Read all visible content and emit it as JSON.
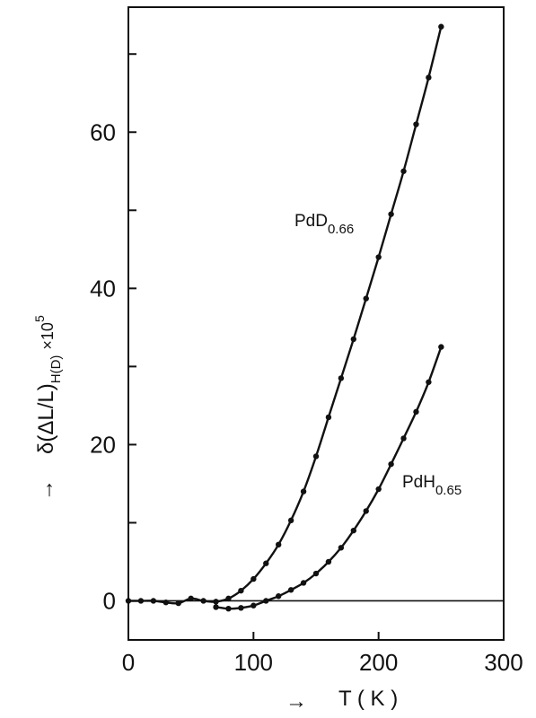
{
  "chart_data": {
    "type": "line",
    "xlabel": {
      "prefix": "→",
      "text": "T ( K )"
    },
    "ylabel": {
      "prefix": "→",
      "main": "δ(ΔL/L)",
      "sub": "H(D)",
      "mult": "×10",
      "exp": "5"
    },
    "xlim": [
      0,
      300
    ],
    "ylim": [
      -5,
      76
    ],
    "x_ticks": [
      0,
      100,
      200,
      300
    ],
    "x_tick_labels": [
      "0",
      "100",
      "200",
      "300"
    ],
    "y_ticks": [
      0,
      10,
      20,
      30,
      40,
      50,
      60,
      70
    ],
    "y_tick_labels": [
      {
        "v": 0,
        "t": "0"
      },
      {
        "v": 20,
        "t": "20"
      },
      {
        "v": 40,
        "t": "40"
      },
      {
        "v": 60,
        "t": "60"
      }
    ],
    "zero_line": true,
    "grid": false,
    "series": [
      {
        "name": "PdD",
        "name_sub": "0.66",
        "x": [
          0,
          10,
          20,
          30,
          40,
          50,
          60,
          70,
          80,
          90,
          100,
          110,
          120,
          130,
          140,
          150,
          160,
          170,
          180,
          190,
          200,
          210,
          220,
          230,
          240,
          250
        ],
        "y": [
          0,
          0,
          0,
          -0.2,
          -0.3,
          0.3,
          0,
          -0.1,
          0.3,
          1.3,
          2.8,
          4.8,
          7.2,
          10.3,
          14.0,
          18.5,
          23.5,
          28.5,
          33.5,
          38.7,
          44.0,
          49.5,
          55.0,
          61.0,
          67.0,
          73.5
        ]
      },
      {
        "name": "PdH",
        "name_sub": "0.65",
        "x": [
          70,
          80,
          90,
          100,
          110,
          120,
          130,
          140,
          150,
          160,
          170,
          180,
          190,
          200,
          210,
          220,
          230,
          240,
          250
        ],
        "y": [
          -0.8,
          -1.0,
          -0.9,
          -0.6,
          0,
          0.6,
          1.4,
          2.3,
          3.5,
          5.0,
          6.8,
          9.0,
          11.5,
          14.3,
          17.5,
          20.8,
          24.2,
          28.0,
          32.5
        ]
      }
    ]
  }
}
